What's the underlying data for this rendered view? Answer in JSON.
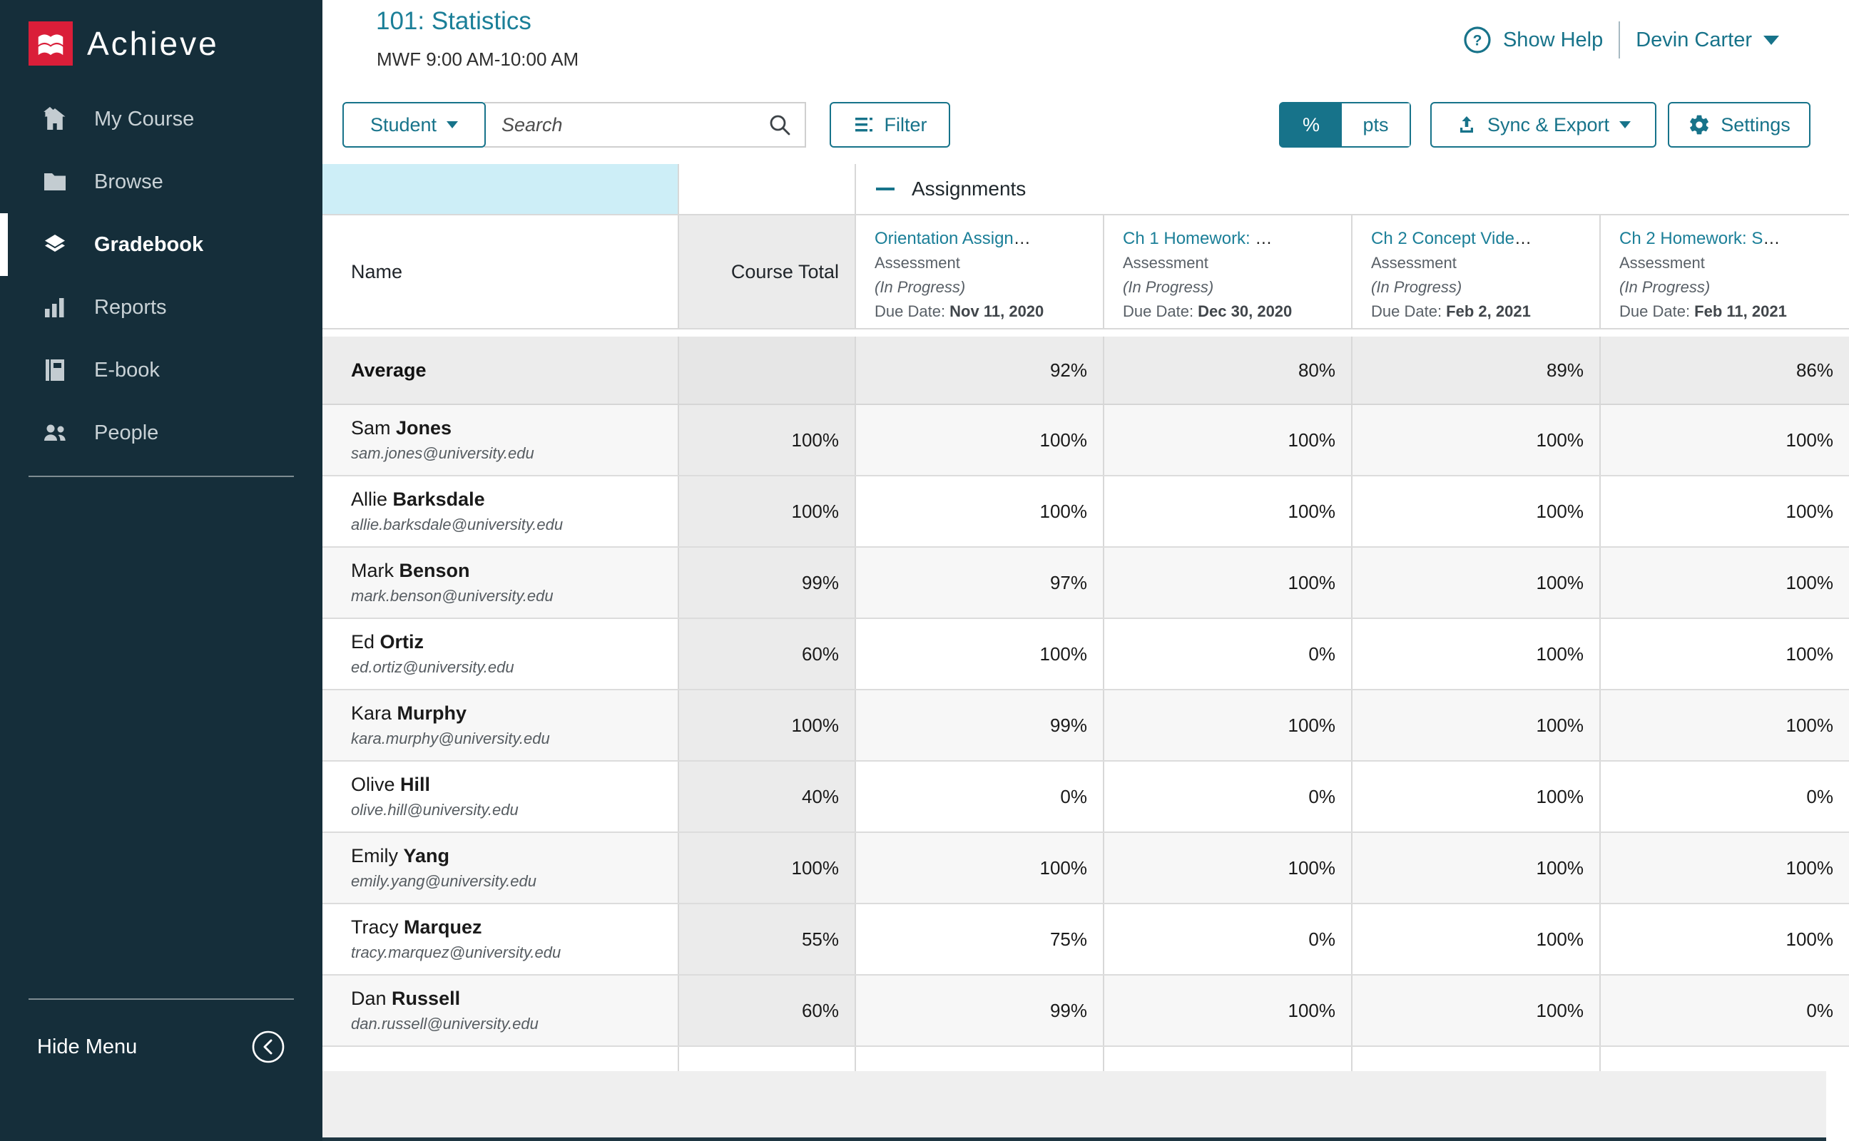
{
  "colors": {
    "accent": "#17738a",
    "link": "#1b7f98",
    "brand_red": "#da1e39",
    "sidebar_bg": "#152e3a",
    "selection_blue": "#cdeef7"
  },
  "brand": {
    "logo_text": "Achieve",
    "logo_mark": "macmillan-m"
  },
  "sidebar": {
    "items": [
      {
        "label": "My Course",
        "icon": "home-icon",
        "active": false
      },
      {
        "label": "Browse",
        "icon": "folder-icon",
        "active": false
      },
      {
        "label": "Gradebook",
        "icon": "layers-icon",
        "active": true
      },
      {
        "label": "Reports",
        "icon": "bar-chart-icon",
        "active": false
      },
      {
        "label": "E-book",
        "icon": "book-icon",
        "active": false
      },
      {
        "label": "People",
        "icon": "people-icon",
        "active": false
      }
    ],
    "hide_menu_label": "Hide Menu"
  },
  "header": {
    "course_title": "101: Statistics",
    "schedule": "MWF 9:00 AM-10:00 AM",
    "show_help_label": "Show Help",
    "user_name": "Devin Carter"
  },
  "toolbar": {
    "student_label": "Student",
    "search_placeholder": "Search",
    "filter_label": "Filter",
    "toggle": {
      "percent_label": "%",
      "points_label": "pts",
      "active": "%"
    },
    "sync_export_label": "Sync & Export",
    "settings_label": "Settings"
  },
  "table": {
    "group_header": "Assignments",
    "name_header": "Name",
    "course_total_header": "Course Total",
    "columns": [
      {
        "title": "Orientation Assign",
        "ellipsis": "…",
        "type": "Assessment",
        "status": "(In Progress)",
        "due_label": "Due Date: ",
        "due_date": "Nov 11, 2020"
      },
      {
        "title": "Ch 1 Homework: ",
        "ellipsis": "…",
        "type": "Assessment",
        "status": "(In Progress)",
        "due_label": "Due Date: ",
        "due_date": "Dec 30, 2020"
      },
      {
        "title": "Ch 2 Concept Vide",
        "ellipsis": "…",
        "type": "Assessment",
        "status": "(In Progress)",
        "due_label": "Due Date: ",
        "due_date": "Feb 2, 2021"
      },
      {
        "title": "Ch 2 Homework: S",
        "ellipsis": "…",
        "type": "Assessment",
        "status": "(In Progress)",
        "due_label": "Due Date: ",
        "due_date": "Feb 11, 2021"
      }
    ],
    "average_row": {
      "label": "Average",
      "course_total": "",
      "values": [
        "92%",
        "80%",
        "89%",
        "86%"
      ]
    },
    "rows": [
      {
        "first": "Sam",
        "last": "Jones",
        "email": "sam.jones@university.edu",
        "course_total": "100%",
        "values": [
          "100%",
          "100%",
          "100%",
          "100%"
        ]
      },
      {
        "first": "Allie",
        "last": "Barksdale",
        "email": "allie.barksdale@university.edu",
        "course_total": "100%",
        "values": [
          "100%",
          "100%",
          "100%",
          "100%"
        ]
      },
      {
        "first": "Mark",
        "last": "Benson",
        "email": "mark.benson@university.edu",
        "course_total": "99%",
        "values": [
          "97%",
          "100%",
          "100%",
          "100%"
        ]
      },
      {
        "first": "Ed",
        "last": "Ortiz",
        "email": "ed.ortiz@university.edu",
        "course_total": "60%",
        "values": [
          "100%",
          "0%",
          "100%",
          "100%"
        ]
      },
      {
        "first": "Kara",
        "last": "Murphy",
        "email": "kara.murphy@university.edu",
        "course_total": "100%",
        "values": [
          "99%",
          "100%",
          "100%",
          "100%"
        ]
      },
      {
        "first": "Olive",
        "last": "Hill",
        "email": "olive.hill@university.edu",
        "course_total": "40%",
        "values": [
          "0%",
          "0%",
          "100%",
          "0%"
        ]
      },
      {
        "first": "Emily",
        "last": "Yang",
        "email": "emily.yang@university.edu",
        "course_total": "100%",
        "values": [
          "100%",
          "100%",
          "100%",
          "100%"
        ]
      },
      {
        "first": "Tracy",
        "last": "Marquez",
        "email": "tracy.marquez@university.edu",
        "course_total": "55%",
        "values": [
          "75%",
          "0%",
          "100%",
          "100%"
        ]
      },
      {
        "first": "Dan",
        "last": "Russell",
        "email": "dan.russell@university.edu",
        "course_total": "60%",
        "values": [
          "99%",
          "100%",
          "100%",
          "0%"
        ]
      }
    ]
  }
}
